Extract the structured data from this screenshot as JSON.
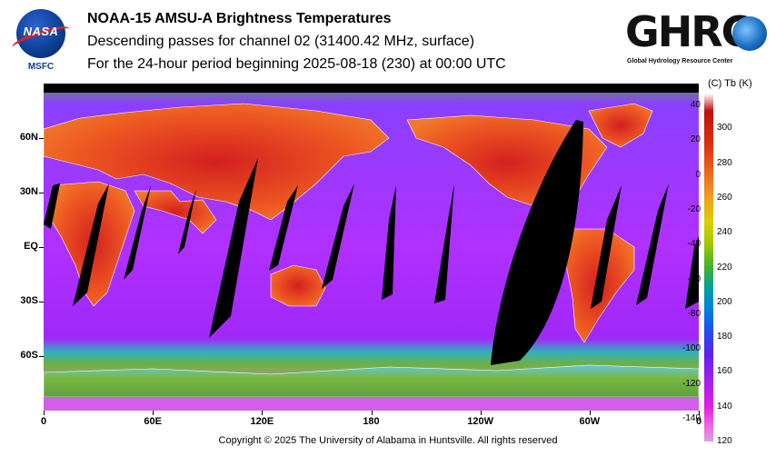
{
  "header": {
    "title": "NOAA-15 AMSU-A Brightness Temperatures",
    "subtitle": "Descending passes for channel 02 (31400.42 MHz, surface)",
    "period": "For the 24-hour period beginning 2025-08-18 (230) at 00:00 UTC"
  },
  "logos": {
    "nasa_word": "NASA",
    "nasa_sub": "MSFC",
    "ghrc_word": "GHRC",
    "ghrc_tag": "Global Hydrology Resource Center"
  },
  "map": {
    "lat_labels": [
      "60N",
      "30N",
      "EQ",
      "30S",
      "60S"
    ],
    "lat_values": [
      60,
      30,
      0,
      -30,
      -60
    ],
    "lon_labels": [
      "0",
      "60E",
      "120E",
      "180",
      "120W",
      "60W",
      "0"
    ],
    "lon_values": [
      0,
      60,
      120,
      180,
      240,
      300,
      360
    ],
    "lat_range": [
      -90,
      90
    ],
    "lon_range": [
      0,
      360
    ],
    "swath_gap_color": "#000000",
    "colors": {
      "warm_land": "#e8502a",
      "hot_land": "#d42020",
      "ocean": "#b030ff",
      "ice": "#4fa040",
      "deep_ocean": "#8a1cf0"
    }
  },
  "colorbar": {
    "units": "(C)  Tb  (K)",
    "celsius_ticks": [
      "40",
      "20",
      "0",
      "-20",
      "-40",
      "-60",
      "-80",
      "-100",
      "-120",
      "-140"
    ],
    "celsius_values": [
      40,
      20,
      0,
      -20,
      -40,
      -60,
      -80,
      -100,
      -120,
      -140
    ],
    "kelvin_ticks": [
      "300",
      "280",
      "260",
      "240",
      "220",
      "200",
      "180",
      "160",
      "140",
      "120"
    ],
    "kelvin_values": [
      300,
      280,
      260,
      240,
      220,
      200,
      180,
      160,
      140,
      120
    ],
    "range_k": [
      120,
      320
    ]
  },
  "footer": {
    "copyright": "Copyright © 2025 The University of Alabama in Huntsville.  All rights reserved"
  }
}
